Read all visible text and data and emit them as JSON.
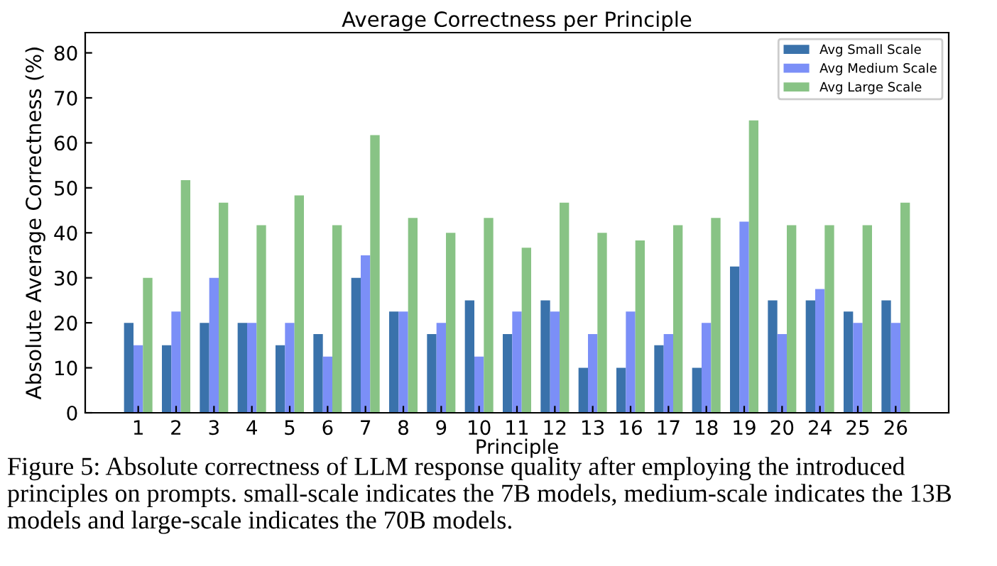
{
  "chart_data": {
    "type": "bar",
    "title": "Average Correctness per Principle",
    "xlabel": "Principle",
    "ylabel": "Absolute Average Correctness (%)",
    "categories": [
      "1",
      "2",
      "3",
      "4",
      "5",
      "6",
      "7",
      "8",
      "9",
      "10",
      "11",
      "12",
      "13",
      "16",
      "17",
      "18",
      "19",
      "20",
      "24",
      "25",
      "26"
    ],
    "series": [
      {
        "name": "Avg Small Scale",
        "color": "#3a72ab",
        "values": [
          20,
          15,
          20,
          20,
          15,
          17.5,
          30,
          22.5,
          17.5,
          25,
          17.5,
          25,
          10,
          10,
          15,
          10,
          32.5,
          25,
          25,
          22.5,
          25
        ]
      },
      {
        "name": "Avg Medium Scale",
        "color": "#7b8ff7",
        "values": [
          15,
          22.5,
          30,
          20,
          20,
          12.5,
          35,
          22.5,
          20,
          12.5,
          22.5,
          22.5,
          17.5,
          22.5,
          17.5,
          20,
          42.5,
          17.5,
          27.5,
          20,
          20
        ]
      },
      {
        "name": "Avg Large Scale",
        "color": "#88c385",
        "values": [
          30,
          51.7,
          46.7,
          41.7,
          48.3,
          41.7,
          61.7,
          43.3,
          40,
          43.3,
          36.7,
          46.7,
          40,
          38.3,
          41.7,
          43.3,
          65,
          41.7,
          41.7,
          41.7,
          46.7
        ]
      }
    ],
    "ylim": [
      0,
      84.5
    ],
    "yticks": [
      0,
      10,
      20,
      30,
      40,
      50,
      60,
      70,
      80
    ],
    "grid": false,
    "legend": "top right",
    "annotations": [
      "Figure 5: Absolute correctness of LLM response quality after employing the introduced principles on prompts. small-scale indicates the 7B models, medium-scale indicates the 13B models and large-scale indicates the 70B models."
    ]
  }
}
